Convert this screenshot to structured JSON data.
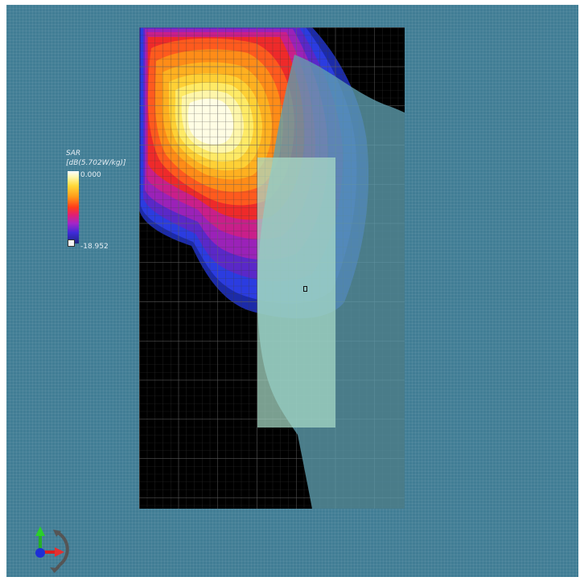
{
  "legend": {
    "title": "SAR",
    "unit": "[dB(5.702W/kg)]",
    "max_value": "0.000",
    "min_value": "-18.952"
  },
  "colors": {
    "background": "#417d95",
    "measurement_area": "#000000",
    "phantom": "#5f9fb0",
    "device": "#9dd2c3",
    "scale_hot": "#ffffff",
    "scale_cold": "#1e2580"
  },
  "icons": {
    "axis_triad": "xyz-axis-triad-icon",
    "rotate": "rotate-arc-icon",
    "legend_swatch": "scale-swatch-icon"
  }
}
